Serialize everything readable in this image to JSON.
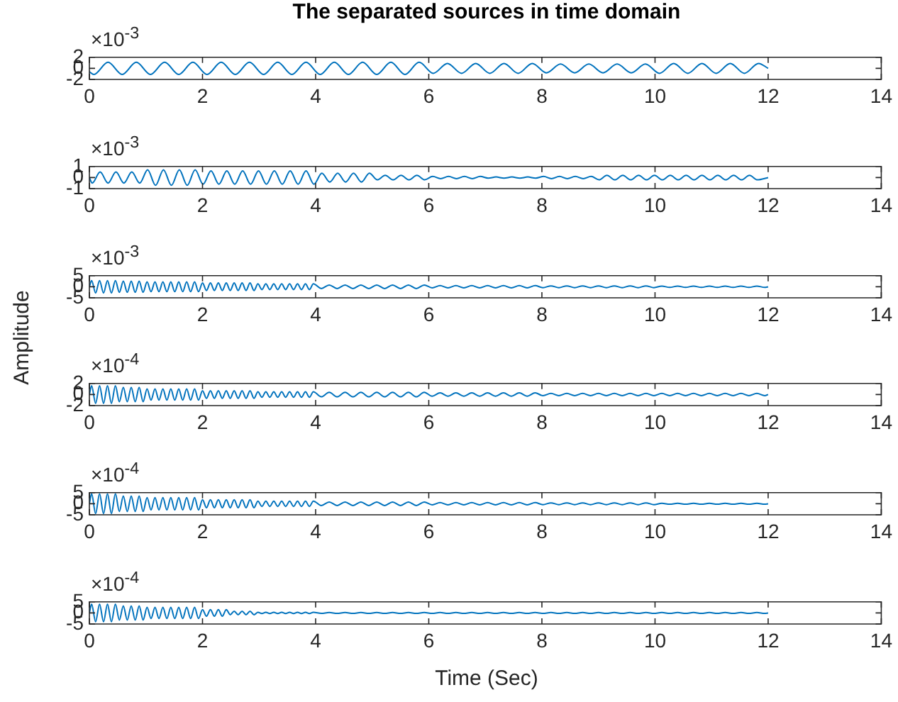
{
  "chart_data": [
    {
      "type": "line",
      "title": "The separated sources in time domain",
      "annotations": [
        "×10$^{-3}$"
      ],
      "grid": false,
      "xlim": [
        0,
        14
      ],
      "xticks": [
        0,
        2,
        4,
        6,
        8,
        10,
        12,
        14
      ],
      "ylim": [
        -2,
        2
      ],
      "yticks": [
        -2,
        0,
        2
      ],
      "x": [
        0,
        0.08,
        0.33,
        0.58,
        0.83,
        1.08,
        1.33,
        1.58,
        1.83,
        2.08,
        2.33,
        2.58,
        2.83,
        3.08,
        3.33,
        3.58,
        3.83,
        4.08,
        4.33,
        4.58,
        4.83,
        5.08,
        5.33,
        5.58,
        5.83,
        6.08,
        6.33,
        6.58,
        6.83,
        7.08,
        7.33,
        7.58,
        7.83,
        8.08,
        8.33,
        8.58,
        8.83,
        9.08,
        9.33,
        9.58,
        9.83,
        10.08,
        10.33,
        10.58,
        10.83,
        11.08,
        11.33,
        11.58,
        11.83,
        12
      ],
      "series": [
        {
          "color": "#0072bd",
          "values": [
            -0.6,
            -1.1,
            1.1,
            -1.1,
            1.1,
            -1.1,
            1.1,
            -1.1,
            1.1,
            -1.1,
            1.1,
            -1.1,
            1.1,
            -1.1,
            1.1,
            -1.1,
            1.1,
            -1.1,
            1.1,
            -1.1,
            1.1,
            -1.1,
            1.1,
            -1.1,
            1.1,
            -0.9,
            0.9,
            -0.9,
            0.9,
            -0.9,
            0.9,
            -0.9,
            0.9,
            -0.8,
            0.8,
            -0.8,
            0.8,
            -0.8,
            0.8,
            -0.8,
            0.8,
            -0.9,
            0.9,
            -0.9,
            0.9,
            -0.9,
            0.9,
            -0.9,
            0.9,
            0
          ]
        }
      ]
    },
    {
      "type": "line",
      "annotations": [
        "×10$^{-3}$"
      ],
      "grid": false,
      "xlim": [
        0,
        14
      ],
      "xticks": [
        0,
        2,
        4,
        6,
        8,
        10,
        12,
        14
      ],
      "ylim": [
        -1,
        1
      ],
      "yticks": [
        -1,
        0,
        1
      ],
      "x": [
        0,
        0.05,
        0.19,
        0.33,
        0.47,
        0.61,
        0.75,
        0.89,
        1.03,
        1.17,
        1.31,
        1.45,
        1.59,
        1.73,
        1.87,
        2.01,
        2.15,
        2.29,
        2.43,
        2.57,
        2.71,
        2.85,
        2.99,
        3.13,
        3.27,
        3.41,
        3.55,
        3.69,
        3.83,
        3.97,
        4.11,
        4.25,
        4.39,
        4.53,
        4.67,
        4.81,
        4.95,
        5.09,
        5.23,
        5.37,
        5.51,
        5.65,
        5.79,
        5.93,
        6.07,
        6.21,
        6.35,
        6.49,
        6.63,
        6.77,
        6.91,
        7.05,
        7.19,
        7.33,
        7.47,
        7.61,
        7.75,
        7.89,
        8.03,
        8.17,
        8.31,
        8.45,
        8.59,
        8.73,
        8.87,
        9.01,
        9.15,
        9.29,
        9.43,
        9.57,
        9.71,
        9.85,
        9.99,
        10.13,
        10.27,
        10.41,
        10.55,
        10.69,
        10.83,
        10.97,
        11.11,
        11.25,
        11.39,
        11.53,
        11.67,
        11.81,
        12
      ],
      "series": [
        {
          "color": "#0072bd",
          "values": [
            0,
            -0.5,
            0.5,
            -0.5,
            0.5,
            -0.5,
            0.5,
            -0.5,
            0.7,
            -0.7,
            0.7,
            -0.7,
            0.7,
            -0.7,
            0.7,
            -0.6,
            0.6,
            -0.6,
            0.6,
            -0.6,
            0.6,
            -0.6,
            0.6,
            -0.6,
            0.6,
            -0.6,
            0.6,
            -0.6,
            0.6,
            -0.6,
            0.4,
            -0.4,
            0.4,
            -0.4,
            0.4,
            -0.4,
            0.4,
            -0.2,
            0.2,
            -0.2,
            0.2,
            -0.2,
            0.2,
            -0.2,
            0.1,
            -0.1,
            0.1,
            -0.1,
            0.1,
            -0.1,
            0.1,
            -0.05,
            0.05,
            -0.05,
            0.05,
            -0.05,
            0.05,
            -0.05,
            0.1,
            -0.1,
            0.1,
            -0.1,
            0.1,
            -0.1,
            0.1,
            -0.2,
            0.2,
            -0.2,
            0.2,
            -0.2,
            0.2,
            -0.2,
            0.2,
            -0.2,
            0.2,
            -0.2,
            0.2,
            -0.2,
            0.2,
            -0.2,
            0.2,
            -0.2,
            0.2,
            -0.2,
            0.2,
            -0.2,
            0
          ]
        }
      ]
    },
    {
      "type": "line",
      "annotations": [
        "×10$^{-3}$"
      ],
      "ylabel": "Amplitude",
      "grid": false,
      "xlim": [
        0,
        14
      ],
      "xticks": [
        0,
        2,
        4,
        6,
        8,
        10,
        12,
        14
      ],
      "ylim": [
        -5,
        5
      ],
      "yticks": [
        -5,
        0,
        5
      ],
      "x": [
        0,
        0.04,
        0.11,
        0.18,
        0.25,
        0.32,
        0.39,
        0.46,
        0.53,
        0.6,
        0.67,
        0.74,
        0.81,
        0.88,
        0.95,
        1.02,
        1.09,
        1.16,
        1.23,
        1.3,
        1.37,
        1.44,
        1.51,
        1.58,
        1.65,
        1.72,
        1.79,
        1.86,
        1.93,
        2,
        2.07,
        2.14,
        2.21,
        2.28,
        2.35,
        2.42,
        2.49,
        2.56,
        2.63,
        2.7,
        2.77,
        2.84,
        2.91,
        2.98,
        3.05,
        3.12,
        3.19,
        3.26,
        3.33,
        3.4,
        3.47,
        3.54,
        3.61,
        3.68,
        3.75,
        3.82,
        3.89,
        3.96,
        4.1,
        4.24,
        4.38,
        4.52,
        4.66,
        4.8,
        4.94,
        5.08,
        5.22,
        5.36,
        5.5,
        5.64,
        5.78,
        5.92,
        6.06,
        6.2,
        6.34,
        6.48,
        6.62,
        6.76,
        6.9,
        7.04,
        7.18,
        7.32,
        7.46,
        7.6,
        7.74,
        7.88,
        8.02,
        8.16,
        8.3,
        8.44,
        8.58,
        8.72,
        8.86,
        9,
        9.14,
        9.28,
        9.42,
        9.56,
        9.7,
        9.84,
        9.98,
        10.12,
        10.26,
        10.4,
        10.54,
        10.68,
        10.82,
        10.96,
        11.1,
        11.24,
        11.38,
        11.52,
        11.66,
        11.8,
        11.94,
        12
      ],
      "series": [
        {
          "color": "#0072bd",
          "values": [
            0,
            2.8,
            -2.8,
            2.8,
            -2.8,
            2.8,
            -2.8,
            2.8,
            -2.5,
            2.5,
            -2.5,
            2.5,
            -2.5,
            2.5,
            -2.5,
            2.2,
            -2.2,
            2.2,
            -2.2,
            2.2,
            -2.2,
            2.2,
            -2.2,
            2.2,
            -2.2,
            2.2,
            -2.2,
            2.2,
            -2.2,
            1.7,
            -1.7,
            1.7,
            -1.7,
            1.7,
            -1.7,
            1.7,
            -1.7,
            1.7,
            -1.7,
            1.7,
            -1.7,
            1.7,
            -1.7,
            1.3,
            -1.3,
            1.3,
            -1.3,
            1.3,
            -1.3,
            1.3,
            -1.3,
            1.3,
            -1.3,
            1.3,
            -1.3,
            1.3,
            -1.3,
            1.3,
            -0.8,
            0.8,
            -0.8,
            0.8,
            -0.8,
            0.8,
            -0.8,
            0.8,
            -0.8,
            0.8,
            -0.8,
            0.8,
            -0.8,
            0.8,
            -0.5,
            0.5,
            -0.5,
            0.5,
            -0.5,
            0.5,
            -0.5,
            0.5,
            -0.5,
            0.5,
            -0.5,
            0.5,
            -0.5,
            0.5,
            -0.4,
            0.4,
            -0.4,
            0.4,
            -0.4,
            0.4,
            -0.4,
            0.4,
            -0.4,
            0.4,
            -0.4,
            0.4,
            -0.4,
            0.4,
            -0.4,
            0.3,
            -0.3,
            0.3,
            -0.3,
            0.3,
            -0.3,
            0.3,
            -0.3,
            0.3,
            -0.3,
            0.3,
            -0.3,
            0.3,
            -0.3,
            0
          ]
        }
      ]
    },
    {
      "type": "line",
      "annotations": [
        "×10$^{-4}$"
      ],
      "grid": false,
      "xlim": [
        0,
        14
      ],
      "xticks": [
        0,
        2,
        4,
        6,
        8,
        10,
        12,
        14
      ],
      "ylim": [
        -2,
        2
      ],
      "yticks": [
        -2,
        0,
        2
      ],
      "x": [
        0,
        0.04,
        0.11,
        0.18,
        0.25,
        0.32,
        0.39,
        0.46,
        0.53,
        0.6,
        0.67,
        0.74,
        0.81,
        0.88,
        0.95,
        1.02,
        1.09,
        1.16,
        1.23,
        1.3,
        1.37,
        1.44,
        1.51,
        1.58,
        1.65,
        1.72,
        1.79,
        1.86,
        1.93,
        2,
        2.07,
        2.14,
        2.21,
        2.28,
        2.35,
        2.42,
        2.49,
        2.56,
        2.63,
        2.7,
        2.77,
        2.84,
        2.91,
        2.98,
        3.05,
        3.12,
        3.19,
        3.26,
        3.33,
        3.4,
        3.47,
        3.54,
        3.61,
        3.68,
        3.75,
        3.82,
        3.89,
        3.96,
        4.1,
        4.24,
        4.38,
        4.52,
        4.66,
        4.8,
        4.94,
        5.08,
        5.22,
        5.36,
        5.5,
        5.64,
        5.78,
        5.92,
        6.06,
        6.2,
        6.34,
        6.48,
        6.62,
        6.76,
        6.9,
        7.04,
        7.18,
        7.32,
        7.46,
        7.6,
        7.74,
        7.88,
        8.02,
        8.16,
        8.3,
        8.44,
        8.58,
        8.72,
        8.86,
        9,
        9.14,
        9.28,
        9.42,
        9.56,
        9.7,
        9.84,
        9.98,
        10.12,
        10.26,
        10.4,
        10.54,
        10.68,
        10.82,
        10.96,
        11.1,
        11.24,
        11.38,
        11.52,
        11.66,
        11.8,
        11.94,
        12
      ],
      "series": [
        {
          "color": "#0072bd",
          "values": [
            0,
            1.6,
            -1.6,
            1.6,
            -1.6,
            1.6,
            -1.6,
            1.6,
            -1.3,
            1.3,
            -1.3,
            1.3,
            -1.3,
            1.3,
            -1.3,
            1,
            -1,
            1,
            -1,
            1,
            -1,
            1,
            -1,
            1,
            -1,
            1,
            -1,
            1,
            -1,
            0.7,
            -0.7,
            0.7,
            -0.7,
            0.7,
            -0.7,
            0.7,
            -0.7,
            0.7,
            -0.7,
            0.7,
            -0.7,
            0.7,
            -0.7,
            0.5,
            -0.5,
            0.5,
            -0.5,
            0.5,
            -0.5,
            0.5,
            -0.5,
            0.5,
            -0.5,
            0.5,
            -0.5,
            0.5,
            -0.5,
            0.5,
            -0.4,
            0.4,
            -0.4,
            0.4,
            -0.4,
            0.4,
            -0.4,
            0.4,
            -0.4,
            0.4,
            -0.4,
            0.4,
            -0.4,
            0.4,
            -0.3,
            0.3,
            -0.3,
            0.3,
            -0.3,
            0.3,
            -0.3,
            0.3,
            -0.3,
            0.3,
            -0.3,
            0.3,
            -0.3,
            0.3,
            -0.2,
            0.2,
            -0.2,
            0.2,
            -0.2,
            0.2,
            -0.2,
            0.2,
            -0.2,
            0.2,
            -0.2,
            0.2,
            -0.2,
            0.2,
            -0.2,
            0.2,
            -0.2,
            0.2,
            -0.2,
            0.2,
            -0.2,
            0.2,
            -0.2,
            0.2,
            -0.2,
            0.2,
            -0.2,
            0.2,
            -0.2,
            0
          ]
        }
      ]
    },
    {
      "type": "line",
      "annotations": [
        "×10$^{-4}$"
      ],
      "grid": false,
      "xlim": [
        0,
        14
      ],
      "xticks": [
        0,
        2,
        4,
        6,
        8,
        10,
        12,
        14
      ],
      "ylim": [
        -5,
        5
      ],
      "yticks": [
        -5,
        0,
        5
      ],
      "x": [
        0,
        0.04,
        0.11,
        0.18,
        0.25,
        0.32,
        0.39,
        0.46,
        0.53,
        0.6,
        0.67,
        0.74,
        0.81,
        0.88,
        0.95,
        1.02,
        1.09,
        1.16,
        1.23,
        1.3,
        1.37,
        1.44,
        1.51,
        1.58,
        1.65,
        1.72,
        1.79,
        1.86,
        1.93,
        2,
        2.07,
        2.14,
        2.21,
        2.28,
        2.35,
        2.42,
        2.49,
        2.56,
        2.63,
        2.7,
        2.77,
        2.84,
        2.91,
        2.98,
        3.05,
        3.12,
        3.19,
        3.26,
        3.33,
        3.4,
        3.47,
        3.54,
        3.61,
        3.68,
        3.75,
        3.82,
        3.89,
        3.96,
        4.1,
        4.24,
        4.38,
        4.52,
        4.66,
        4.8,
        4.94,
        5.08,
        5.22,
        5.36,
        5.5,
        5.64,
        5.78,
        5.92,
        6.06,
        6.2,
        6.34,
        6.48,
        6.62,
        6.76,
        6.9,
        7.04,
        7.18,
        7.32,
        7.46,
        7.6,
        7.74,
        7.88,
        8.02,
        8.16,
        8.3,
        8.44,
        8.58,
        8.72,
        8.86,
        9,
        9.14,
        9.28,
        9.42,
        9.56,
        9.7,
        9.84,
        9.98,
        10.12,
        10.26,
        10.4,
        10.54,
        10.68,
        10.82,
        10.96,
        11.1,
        11.24,
        11.38,
        11.52,
        11.66,
        11.8,
        11.94,
        12
      ],
      "series": [
        {
          "color": "#0072bd",
          "values": [
            0,
            4.5,
            -4.5,
            4.5,
            -4.5,
            4.5,
            -4.5,
            4.5,
            -3.5,
            3.5,
            -3.5,
            3.5,
            -3.5,
            3.5,
            -3.5,
            2.8,
            -2.8,
            2.8,
            -2.8,
            2.8,
            -2.8,
            2.8,
            -2.8,
            2.8,
            -2.8,
            2.8,
            -2.8,
            2.8,
            -2.8,
            1.8,
            -1.8,
            1.8,
            -1.8,
            1.8,
            -1.8,
            1.8,
            -1.8,
            1.8,
            -1.8,
            1.8,
            -1.8,
            1.8,
            -1.8,
            1.2,
            -1.2,
            1.2,
            -1.2,
            1.2,
            -1.2,
            1.2,
            -1.2,
            1.2,
            -1.2,
            1.2,
            -1.2,
            1.2,
            -1.2,
            1.2,
            -0.8,
            0.8,
            -0.8,
            0.8,
            -0.8,
            0.8,
            -0.8,
            0.8,
            -0.8,
            0.8,
            -0.8,
            0.8,
            -0.8,
            0.8,
            -0.5,
            0.5,
            -0.5,
            0.5,
            -0.5,
            0.5,
            -0.5,
            0.5,
            -0.5,
            0.5,
            -0.5,
            0.5,
            -0.5,
            0.5,
            -0.4,
            0.4,
            -0.4,
            0.4,
            -0.4,
            0.4,
            -0.4,
            0.4,
            -0.4,
            0.4,
            -0.4,
            0.4,
            -0.4,
            0.4,
            -0.4,
            0.2,
            -0.2,
            0.2,
            -0.2,
            0.2,
            -0.2,
            0.2,
            -0.2,
            0.2,
            -0.2,
            0.2,
            -0.2,
            0.2,
            -0.2,
            0
          ]
        }
      ]
    },
    {
      "type": "line",
      "annotations": [
        "×10$^{-4}$"
      ],
      "xlabel": "Time (Sec)",
      "grid": false,
      "xlim": [
        0,
        14
      ],
      "xticks": [
        0,
        2,
        4,
        6,
        8,
        10,
        12,
        14
      ],
      "ylim": [
        -5,
        5
      ],
      "yticks": [
        -5,
        0,
        5
      ],
      "x": [
        0,
        0.04,
        0.11,
        0.18,
        0.25,
        0.32,
        0.39,
        0.46,
        0.53,
        0.6,
        0.67,
        0.74,
        0.81,
        0.88,
        0.95,
        1.02,
        1.09,
        1.16,
        1.23,
        1.3,
        1.37,
        1.44,
        1.51,
        1.58,
        1.65,
        1.72,
        1.79,
        1.86,
        1.93,
        2,
        2.07,
        2.14,
        2.21,
        2.28,
        2.35,
        2.42,
        2.49,
        2.56,
        2.63,
        2.7,
        2.77,
        2.84,
        2.91,
        2.98,
        3.05,
        3.12,
        3.19,
        3.26,
        3.33,
        3.4,
        3.47,
        3.54,
        3.61,
        3.68,
        3.75,
        3.82,
        3.89,
        3.96,
        4.1,
        4.24,
        4.38,
        4.52,
        4.66,
        4.8,
        4.94,
        5.08,
        5.22,
        5.36,
        5.5,
        5.64,
        5.78,
        5.92,
        6.06,
        6.2,
        6.34,
        6.48,
        6.62,
        6.76,
        6.9,
        7.04,
        7.18,
        7.32,
        7.46,
        7.6,
        7.74,
        7.88,
        8.02,
        8.16,
        8.3,
        8.44,
        8.58,
        8.72,
        8.86,
        9,
        9.14,
        9.28,
        9.42,
        9.56,
        9.7,
        9.84,
        9.98,
        10.12,
        10.26,
        10.4,
        10.54,
        10.68,
        10.82,
        10.96,
        11.1,
        11.24,
        11.38,
        11.52,
        11.66,
        11.8,
        11.94,
        12
      ],
      "series": [
        {
          "color": "#0072bd",
          "values": [
            0,
            4,
            -4,
            4,
            -4,
            4,
            -4,
            4,
            -3.2,
            3.2,
            -3.2,
            3.2,
            -3.2,
            3.2,
            -3.2,
            2.5,
            -2.5,
            2.5,
            -2.5,
            2.5,
            -2.5,
            2.5,
            -2.5,
            2.5,
            -2.5,
            2.5,
            -2.5,
            2.5,
            -2.5,
            1.5,
            -1.5,
            1.5,
            -1.5,
            1.5,
            -1.5,
            1.5,
            -0.8,
            0.8,
            -0.8,
            0.8,
            -0.8,
            0.8,
            -0.8,
            0.3,
            -0.3,
            0.3,
            -0.3,
            0.3,
            -0.3,
            0.3,
            -0.3,
            0.3,
            -0.3,
            0.3,
            -0.3,
            0.3,
            -0.3,
            0.3,
            -0.2,
            0.2,
            -0.2,
            0.2,
            -0.2,
            0.2,
            -0.2,
            0.2,
            -0.2,
            0.2,
            -0.2,
            0.2,
            -0.2,
            0.2,
            -0.2,
            0.2,
            -0.2,
            0.2,
            -0.2,
            0.2,
            -0.2,
            0.2,
            -0.2,
            0.2,
            -0.2,
            0.2,
            -0.2,
            0.2,
            -0.2,
            0.2,
            -0.2,
            0.2,
            -0.2,
            0.2,
            -0.2,
            0.2,
            -0.2,
            0.2,
            -0.2,
            0.2,
            -0.2,
            0.2,
            -0.2,
            0.2,
            -0.2,
            0.2,
            -0.2,
            0.2,
            -0.2,
            0.2,
            -0.2,
            0.2,
            -0.2,
            0.2,
            -0.2,
            0.2,
            -0.2,
            0
          ]
        }
      ]
    }
  ]
}
